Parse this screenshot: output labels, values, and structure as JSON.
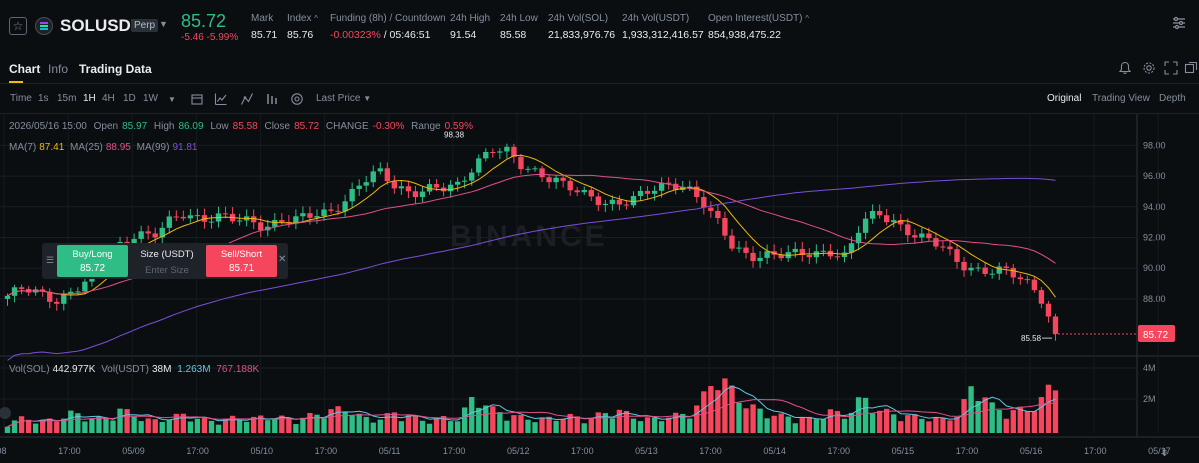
{
  "header": {
    "symbol": "SOLUSDT",
    "badge": "Perp",
    "last_price": "85.72",
    "change": "-5.46 -5.99%",
    "stats": [
      {
        "label": "Mark",
        "value": "85.71"
      },
      {
        "label": "Index",
        "value": "85.76"
      },
      {
        "label": "Funding (8h) / Countdown",
        "value_neg": "-0.00323%",
        "value": " / 05:46:51"
      },
      {
        "label": "24h High",
        "value": "91.54"
      },
      {
        "label": "24h Low",
        "value": "85.58"
      },
      {
        "label": "24h Vol(SOL)",
        "value": "21,833,976.76"
      },
      {
        "label": "24h Vol(USDT)",
        "value": "1,933,312,416.57"
      },
      {
        "label": "Open Interest(USDT)",
        "value": "854,938,475.22"
      }
    ],
    "colors": {
      "up": "#2ebd85",
      "down": "#f6465d",
      "accent": "#f0b90b"
    }
  },
  "tabs": [
    "Chart",
    "Info",
    "Trading Data"
  ],
  "toolbar": {
    "intervals": [
      "Time",
      "1s",
      "15m",
      "1H",
      "4H",
      "1D",
      "1W"
    ],
    "active_interval": "1H",
    "price_source": "Last Price",
    "views": [
      "Original",
      "Trading View",
      "Depth"
    ],
    "active_view": "Original"
  },
  "legend": {
    "ohlc": {
      "date": "2026/05/16 15:00",
      "open_label": "Open",
      "open": "85.97",
      "high_label": "High",
      "high": "86.09",
      "low_label": "Low",
      "low": "85.58",
      "close_label": "Close",
      "close": "85.72",
      "change_label": "CHANGE",
      "change": "-0.30%",
      "range_label": "Range",
      "range": "0.59%"
    },
    "ma": [
      {
        "label": "MA(7)",
        "value": "87.41",
        "color": "#f0b90b"
      },
      {
        "label": "MA(25)",
        "value": "88.95",
        "color": "#e04f8a"
      },
      {
        "label": "MA(99)",
        "value": "91.81",
        "color": "#7b4fd9"
      }
    ],
    "vol": [
      {
        "label": "Vol(SOL)",
        "value": "442.977K",
        "color": "#eaecef"
      },
      {
        "label": "Vol(USDT)",
        "value": "38M",
        "color": "#eaecef"
      },
      {
        "value": "1.263M",
        "color": "#5ec8e5"
      },
      {
        "value": "767.188K",
        "color": "#e04f8a"
      }
    ]
  },
  "order_widget": {
    "buy_label": "Buy/Long",
    "buy_price": "85.72",
    "size_label": "Size (USDT)",
    "size_placeholder": "Enter Size",
    "sell_label": "Sell/Short",
    "sell_price": "85.71"
  },
  "chart_data": {
    "type": "candlestick",
    "interval": "1H",
    "y_axis": {
      "min": 85,
      "max": 99,
      "ticks": [
        "98.00",
        "96.00",
        "94.00",
        "92.00",
        "90.00",
        "88.00"
      ]
    },
    "vol_axis": {
      "ticks": [
        "4M",
        "2M"
      ]
    },
    "x_ticks": [
      "/08",
      "17:00",
      "05/09",
      "17:00",
      "05/10",
      "17:00",
      "05/11",
      "17:00",
      "05/12",
      "17:00",
      "05/13",
      "17:00",
      "05/14",
      "17:00",
      "05/15",
      "17:00",
      "05/16",
      "17:00",
      "05/17"
    ],
    "current_price_label": "85.72",
    "high_marker": "98.38",
    "low_marker": "85.58",
    "watermark": "BINANCE",
    "close_path": [
      88.2,
      88.6,
      88.3,
      88.0,
      88.5,
      89.2,
      90.4,
      91.6,
      92.4,
      92.0,
      92.9,
      93.6,
      93.3,
      93.4,
      93.1,
      93.0,
      92.8,
      93.2,
      93.1,
      93.4,
      93.7,
      94.6,
      95.6,
      96.2,
      95.4,
      95.0,
      95.2,
      95.1,
      95.3,
      96.9,
      97.9,
      97.5,
      96.4,
      96.2,
      95.9,
      95.2,
      94.5,
      94.2,
      94.4,
      94.7,
      95.0,
      95.3,
      95.5,
      94.6,
      93.0,
      91.2,
      90.8,
      91.0,
      90.9,
      90.8,
      90.9,
      91.2,
      90.8,
      92.9,
      93.5,
      93.1,
      92.4,
      91.8,
      91.3,
      90.4,
      90.0,
      89.8,
      89.7,
      89.2,
      88.5,
      85.72
    ],
    "volume_path": [
      0.6,
      0.9,
      0.7,
      0.8,
      1.2,
      0.9,
      0.8,
      1.4,
      1.0,
      0.7,
      0.9,
      1.1,
      0.8,
      0.7,
      0.9,
      0.8,
      1.0,
      0.9,
      0.8,
      1.1,
      1.3,
      1.5,
      0.9,
      0.8,
      1.2,
      1.0,
      0.7,
      0.9,
      0.8,
      2.3,
      1.4,
      1.1,
      0.9,
      0.8,
      0.9,
      1.0,
      0.8,
      1.2,
      1.3,
      0.9,
      0.8,
      1.0,
      1.1,
      1.8,
      3.6,
      2.4,
      1.6,
      1.2,
      1.0,
      0.9,
      0.8,
      1.3,
      1.0,
      2.1,
      1.4,
      1.1,
      1.0,
      0.9,
      0.8,
      1.1,
      3.1,
      1.6,
      1.2,
      1.4,
      1.7,
      3.3
    ]
  }
}
